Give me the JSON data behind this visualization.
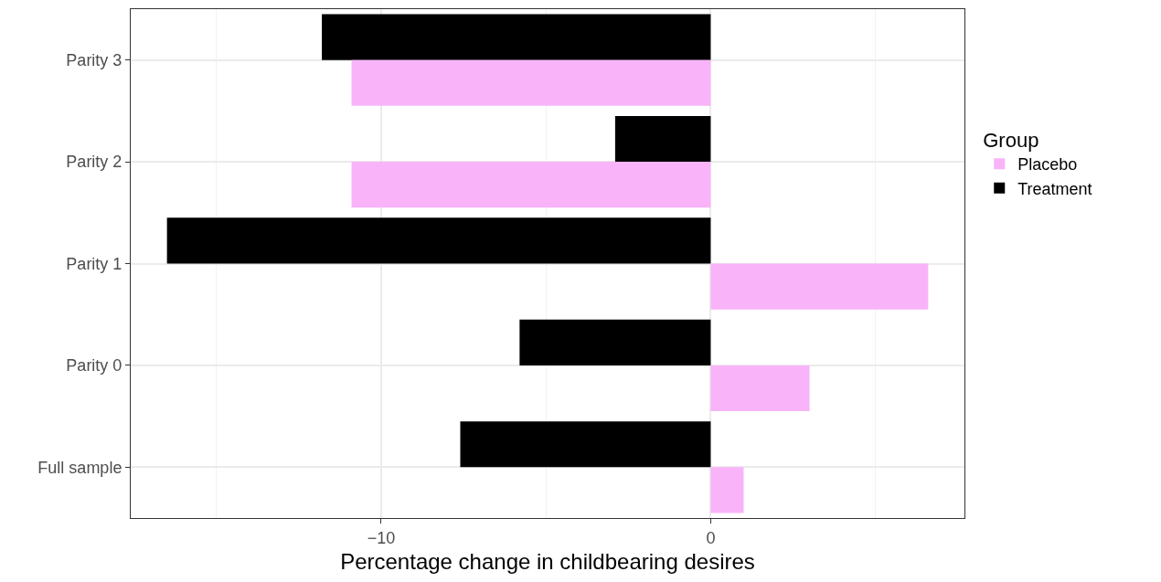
{
  "chart_data": {
    "type": "bar",
    "orientation": "horizontal",
    "xlabel": "Percentage change in childbearing desires",
    "legend_title": "Group",
    "categories": [
      "Parity 3",
      "Parity 2",
      "Parity 1",
      "Parity 0",
      "Full sample"
    ],
    "series": [
      {
        "name": "Placebo",
        "color": "#f9b4f9",
        "values": [
          -10.9,
          -10.9,
          6.6,
          3.0,
          1.0
        ]
      },
      {
        "name": "Treatment",
        "color": "#000000",
        "values": [
          -11.8,
          -2.9,
          -16.5,
          -5.8,
          -7.6
        ]
      }
    ],
    "xlim": [
      -17.6,
      7.7
    ],
    "xticks": [
      {
        "value": -15,
        "label": null
      },
      {
        "value": -10,
        "label": "−10"
      },
      {
        "value": -5,
        "label": null
      },
      0,
      {
        "value": 5,
        "label": null
      }
    ],
    "grid": true,
    "legend": "right"
  }
}
